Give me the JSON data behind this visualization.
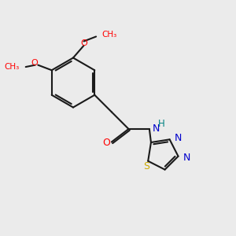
{
  "bg_color": "#ebebeb",
  "bond_color": "#1a1a1a",
  "bond_width": 1.5,
  "O_color": "#ff0000",
  "N_color": "#0000cc",
  "S_color": "#ccaa00",
  "H_color": "#008080",
  "font_size": 9,
  "fig_size": [
    3.0,
    3.0
  ],
  "dpi": 100,
  "xlim": [
    0,
    10
  ],
  "ylim": [
    0,
    10
  ]
}
